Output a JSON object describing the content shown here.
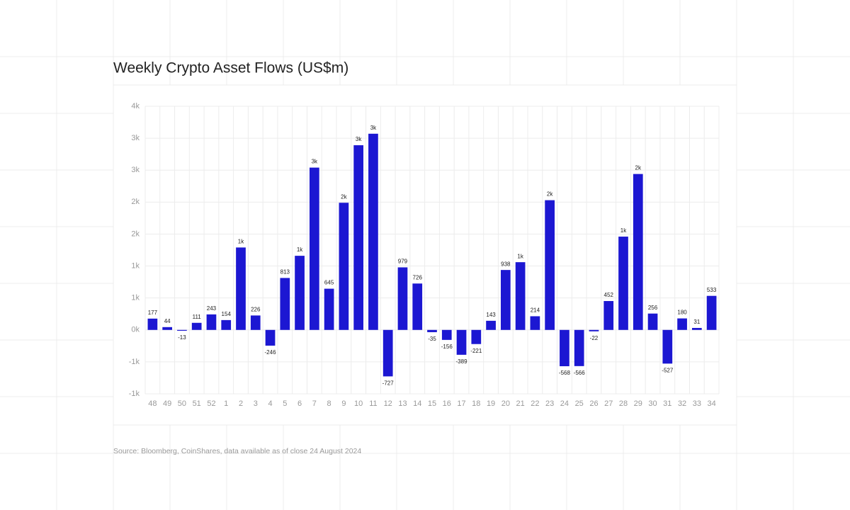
{
  "chart_data": {
    "type": "bar",
    "title": "Weekly Crypto Asset Flows (US$m)",
    "source": "Source: Bloomberg, CoinShares, data available as of close 24 August 2024",
    "categories": [
      "48",
      "49",
      "50",
      "51",
      "52",
      "1",
      "2",
      "3",
      "4",
      "5",
      "6",
      "7",
      "8",
      "9",
      "10",
      "11",
      "12",
      "13",
      "14",
      "15",
      "16",
      "17",
      "18",
      "19",
      "20",
      "21",
      "22",
      "23",
      "24",
      "25",
      "26",
      "27",
      "28",
      "29",
      "30",
      "31",
      "32",
      "33",
      "34"
    ],
    "values": [
      177,
      44,
      -13,
      111,
      243,
      154,
      1290,
      226,
      -246,
      813,
      1160,
      2540,
      645,
      1990,
      2890,
      3070,
      -727,
      979,
      726,
      -35,
      -156,
      -389,
      -221,
      143,
      938,
      1060,
      214,
      2030,
      -568,
      -566,
      -22,
      452,
      1460,
      2440,
      256,
      -527,
      180,
      31,
      533
    ],
    "value_labels": [
      "177",
      "44",
      "-13",
      "111",
      "243",
      "154",
      "1k",
      "226",
      "-246",
      "813",
      "1k",
      "3k",
      "645",
      "2k",
      "3k",
      "3k",
      "-727",
      "979",
      "726",
      "-35",
      "-156",
      "-389",
      "-221",
      "143",
      "938",
      "1k",
      "214",
      "2k",
      "-568",
      "-566",
      "-22",
      "452",
      "1k",
      "2k",
      "256",
      "-527",
      "180",
      "31",
      "533"
    ],
    "color": "#1c17d2",
    "ylim": [
      -1000,
      3500
    ],
    "yticks": [
      {
        "value": -1000,
        "label": "-1k"
      },
      {
        "value": -500,
        "label": "-1k"
      },
      {
        "value": 0,
        "label": "0k"
      },
      {
        "value": 500,
        "label": "1k"
      },
      {
        "value": 1000,
        "label": "1k"
      },
      {
        "value": 1500,
        "label": "2k"
      },
      {
        "value": 2000,
        "label": "2k"
      },
      {
        "value": 2500,
        "label": "3k"
      },
      {
        "value": 3000,
        "label": "3k"
      },
      {
        "value": 3500,
        "label": "4k"
      }
    ],
    "grid": true
  }
}
